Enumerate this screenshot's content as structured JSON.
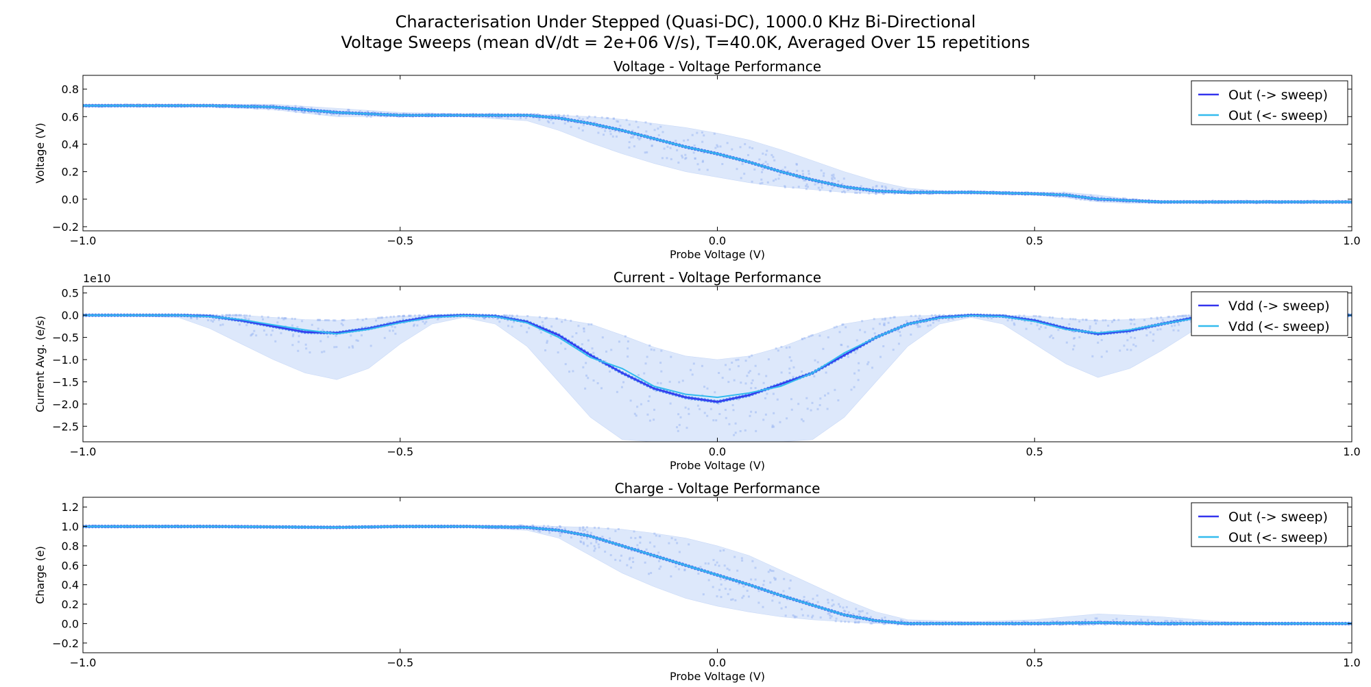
{
  "figure": {
    "title_line1": "Characterisation Under Stepped (Quasi-DC), 1000.0 KHz Bi-Directional",
    "title_line2": "Voltage Sweeps (mean dV/dt = 2e+06 V/s), T=40.0K, Averaged Over 15 repetitions"
  },
  "colors": {
    "forward": "#3333ee",
    "backward": "#33bbee",
    "band": "#dde8fb",
    "samples": "#4a82f0",
    "scatter": "#9db8f2"
  },
  "chart_data": [
    {
      "type": "line",
      "title": "Voltage - Voltage Performance",
      "xlabel": "Probe Voltage (V)",
      "ylabel": "Voltage (V)",
      "xlim": [
        -1.0,
        1.0
      ],
      "ylim": [
        -0.23,
        0.9
      ],
      "xticks": [
        "−1.0",
        "−0.5",
        "0.0",
        "0.5",
        "1.0"
      ],
      "xtick_values": [
        -1.0,
        -0.5,
        0.0,
        0.5,
        1.0
      ],
      "yticks": [
        "−0.2",
        "0.0",
        "0.2",
        "0.4",
        "0.6",
        "0.8"
      ],
      "ytick_values": [
        -0.2,
        0.0,
        0.2,
        0.4,
        0.6,
        0.8
      ],
      "offset_text": "",
      "legend": {
        "position": "top-right",
        "entries": [
          "Out (-> sweep)",
          "Out (<- sweep)"
        ]
      },
      "x": [
        -1.0,
        -0.9,
        -0.8,
        -0.7,
        -0.6,
        -0.5,
        -0.4,
        -0.3,
        -0.25,
        -0.2,
        -0.15,
        -0.1,
        -0.05,
        0.0,
        0.05,
        0.1,
        0.15,
        0.2,
        0.25,
        0.3,
        0.35,
        0.4,
        0.5,
        0.55,
        0.6,
        0.65,
        0.7,
        0.8,
        0.9,
        1.0
      ],
      "series": [
        {
          "name": "Out (-> sweep)",
          "values": [
            0.68,
            0.68,
            0.68,
            0.67,
            0.63,
            0.61,
            0.61,
            0.61,
            0.59,
            0.55,
            0.5,
            0.44,
            0.38,
            0.33,
            0.27,
            0.2,
            0.14,
            0.09,
            0.06,
            0.05,
            0.05,
            0.05,
            0.04,
            0.03,
            0.0,
            -0.01,
            -0.02,
            -0.02,
            -0.02,
            -0.02
          ]
        },
        {
          "name": "Out (<- sweep)",
          "values": [
            0.68,
            0.68,
            0.68,
            0.67,
            0.63,
            0.61,
            0.61,
            0.61,
            0.59,
            0.55,
            0.5,
            0.44,
            0.38,
            0.33,
            0.27,
            0.2,
            0.14,
            0.09,
            0.06,
            0.05,
            0.05,
            0.05,
            0.04,
            0.03,
            0.0,
            -0.01,
            -0.02,
            -0.02,
            -0.02,
            -0.02
          ]
        }
      ],
      "band_upper": [
        0.69,
        0.69,
        0.69,
        0.69,
        0.66,
        0.63,
        0.62,
        0.62,
        0.61,
        0.6,
        0.58,
        0.55,
        0.52,
        0.48,
        0.43,
        0.36,
        0.28,
        0.2,
        0.13,
        0.08,
        0.06,
        0.06,
        0.05,
        0.05,
        0.03,
        0.0,
        -0.01,
        -0.01,
        -0.01,
        -0.01
      ],
      "band_lower": [
        0.67,
        0.67,
        0.67,
        0.65,
        0.6,
        0.6,
        0.6,
        0.57,
        0.5,
        0.41,
        0.33,
        0.26,
        0.2,
        0.16,
        0.12,
        0.09,
        0.07,
        0.05,
        0.04,
        0.04,
        0.04,
        0.04,
        0.03,
        0.01,
        -0.02,
        -0.03,
        -0.03,
        -0.03,
        -0.03,
        -0.03
      ]
    },
    {
      "type": "line",
      "title": "Current - Voltage Performance",
      "xlabel": "Probe Voltage (V)",
      "ylabel": "Current Avg. (e/s)",
      "xlim": [
        -1.0,
        1.0
      ],
      "ylim": [
        -2.85,
        0.65
      ],
      "xticks": [
        "−1.0",
        "−0.5",
        "0.0",
        "0.5",
        "1.0"
      ],
      "xtick_values": [
        -1.0,
        -0.5,
        0.0,
        0.5,
        1.0
      ],
      "yticks": [
        "−2.5",
        "−2.0",
        "−1.5",
        "−1.0",
        "−0.5",
        "0.0",
        "0.5"
      ],
      "ytick_values": [
        -2.5,
        -2.0,
        -1.5,
        -1.0,
        -0.5,
        0.0,
        0.5
      ],
      "offset_text": "1e10",
      "legend": {
        "position": "top-right",
        "entries": [
          "Vdd (-> sweep)",
          "Vdd (<- sweep)"
        ]
      },
      "x": [
        -1.0,
        -0.85,
        -0.8,
        -0.75,
        -0.7,
        -0.65,
        -0.6,
        -0.55,
        -0.5,
        -0.45,
        -0.4,
        -0.35,
        -0.3,
        -0.25,
        -0.2,
        -0.15,
        -0.1,
        -0.05,
        0.0,
        0.05,
        0.1,
        0.15,
        0.2,
        0.25,
        0.3,
        0.35,
        0.4,
        0.45,
        0.5,
        0.55,
        0.6,
        0.65,
        0.7,
        0.75,
        0.8,
        1.0
      ],
      "series": [
        {
          "name": "Vdd (-> sweep)",
          "values": [
            0.0,
            0.0,
            -0.02,
            -0.12,
            -0.25,
            -0.38,
            -0.4,
            -0.3,
            -0.15,
            -0.03,
            0.0,
            -0.02,
            -0.15,
            -0.45,
            -0.9,
            -1.3,
            -1.65,
            -1.85,
            -1.95,
            -1.8,
            -1.55,
            -1.3,
            -0.9,
            -0.5,
            -0.2,
            -0.05,
            0.0,
            -0.02,
            -0.12,
            -0.3,
            -0.42,
            -0.35,
            -0.2,
            -0.06,
            -0.01,
            0.0
          ]
        },
        {
          "name": "Vdd (<- sweep)",
          "values": [
            0.0,
            0.0,
            -0.03,
            -0.1,
            -0.22,
            -0.33,
            -0.42,
            -0.32,
            -0.17,
            -0.05,
            -0.01,
            -0.03,
            -0.17,
            -0.5,
            -0.95,
            -1.2,
            -1.6,
            -1.78,
            -1.85,
            -1.75,
            -1.6,
            -1.3,
            -0.85,
            -0.5,
            -0.2,
            -0.06,
            -0.01,
            -0.03,
            -0.14,
            -0.32,
            -0.4,
            -0.33,
            -0.2,
            -0.08,
            -0.02,
            0.0
          ]
        }
      ],
      "band_upper": [
        0.0,
        0.0,
        0.0,
        0.0,
        -0.05,
        -0.1,
        -0.12,
        -0.08,
        -0.02,
        0.0,
        0.0,
        0.0,
        -0.02,
        -0.08,
        -0.2,
        -0.45,
        -0.72,
        -0.92,
        -1.0,
        -0.92,
        -0.72,
        -0.45,
        -0.2,
        -0.08,
        -0.02,
        0.0,
        0.0,
        0.0,
        -0.02,
        -0.08,
        -0.12,
        -0.1,
        -0.05,
        0.0,
        0.0,
        0.0
      ],
      "band_lower": [
        0.0,
        -0.05,
        -0.3,
        -0.65,
        -1.0,
        -1.3,
        -1.45,
        -1.2,
        -0.65,
        -0.2,
        -0.05,
        -0.2,
        -0.7,
        -1.5,
        -2.3,
        -2.8,
        -2.85,
        -2.85,
        -2.85,
        -2.85,
        -2.85,
        -2.8,
        -2.3,
        -1.5,
        -0.7,
        -0.2,
        -0.05,
        -0.2,
        -0.65,
        -1.1,
        -1.4,
        -1.2,
        -0.8,
        -0.35,
        -0.05,
        0.0
      ]
    },
    {
      "type": "line",
      "title": "Charge - Voltage Performance",
      "xlabel": "Probe Voltage (V)",
      "ylabel": "Charge (e)",
      "xlim": [
        -1.0,
        1.0
      ],
      "ylim": [
        -0.3,
        1.3
      ],
      "xticks": [
        "−1.0",
        "−0.5",
        "0.0",
        "0.5",
        "1.0"
      ],
      "xtick_values": [
        -1.0,
        -0.5,
        0.0,
        0.5,
        1.0
      ],
      "yticks": [
        "−0.2",
        "0.0",
        "0.2",
        "0.4",
        "0.6",
        "0.8",
        "1.0",
        "1.2"
      ],
      "ytick_values": [
        -0.2,
        0.0,
        0.2,
        0.4,
        0.6,
        0.8,
        1.0,
        1.2
      ],
      "offset_text": "",
      "legend": {
        "position": "top-right",
        "entries": [
          "Out (-> sweep)",
          "Out (<- sweep)"
        ]
      },
      "x": [
        -1.0,
        -0.8,
        -0.6,
        -0.5,
        -0.4,
        -0.3,
        -0.25,
        -0.2,
        -0.15,
        -0.1,
        -0.05,
        0.0,
        0.05,
        0.1,
        0.15,
        0.2,
        0.25,
        0.3,
        0.4,
        0.5,
        0.6,
        0.7,
        0.8,
        1.0
      ],
      "series": [
        {
          "name": "Out (-> sweep)",
          "values": [
            1.0,
            1.0,
            0.99,
            1.0,
            1.0,
            0.99,
            0.96,
            0.9,
            0.8,
            0.7,
            0.6,
            0.5,
            0.4,
            0.29,
            0.19,
            0.09,
            0.03,
            0.0,
            0.0,
            0.0,
            0.01,
            0.0,
            0.0,
            0.0
          ]
        },
        {
          "name": "Out (<- sweep)",
          "values": [
            1.0,
            1.0,
            0.99,
            1.0,
            1.0,
            0.99,
            0.96,
            0.9,
            0.8,
            0.7,
            0.6,
            0.5,
            0.4,
            0.29,
            0.19,
            0.09,
            0.03,
            0.0,
            0.0,
            0.0,
            0.01,
            0.0,
            0.0,
            0.0
          ]
        }
      ],
      "band_upper": [
        1.01,
        1.01,
        1.0,
        1.01,
        1.01,
        1.01,
        1.0,
        0.99,
        0.97,
        0.93,
        0.88,
        0.8,
        0.7,
        0.55,
        0.4,
        0.25,
        0.12,
        0.04,
        0.02,
        0.04,
        0.1,
        0.07,
        0.02,
        0.0
      ],
      "band_lower": [
        0.99,
        0.99,
        0.98,
        0.99,
        0.99,
        0.96,
        0.88,
        0.7,
        0.52,
        0.38,
        0.26,
        0.18,
        0.12,
        0.07,
        0.04,
        0.02,
        0.0,
        -0.01,
        -0.01,
        -0.01,
        -0.01,
        -0.01,
        -0.01,
        -0.01
      ]
    }
  ]
}
